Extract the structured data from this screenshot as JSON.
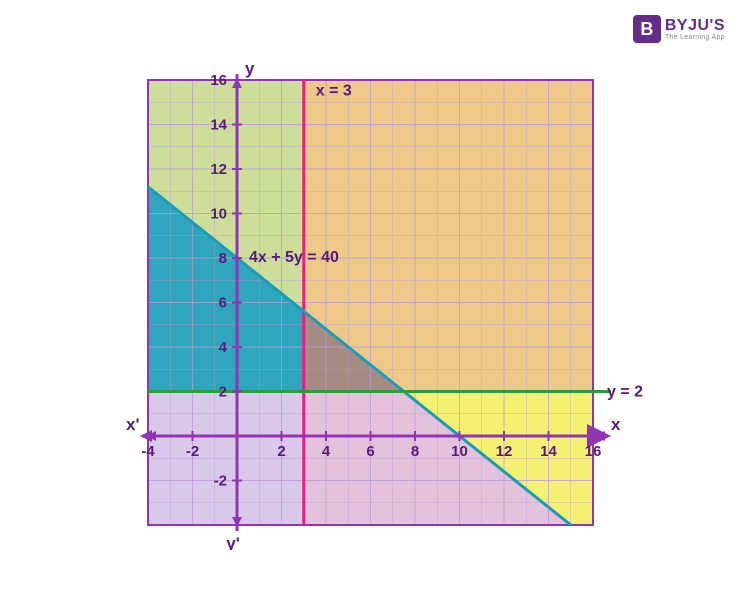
{
  "logo": {
    "badge": "B",
    "main": "BYJU'S",
    "sub": "The Learning App"
  },
  "chart": {
    "type": "linear-inequality-region",
    "xlim": [
      -4,
      16
    ],
    "ylim": [
      -4,
      16
    ],
    "x_ticks": [
      -4,
      -2,
      2,
      4,
      6,
      8,
      10,
      12,
      14,
      16
    ],
    "y_ticks": [
      -2,
      2,
      4,
      6,
      8,
      10,
      12,
      14,
      16
    ],
    "grid_major_step": 2,
    "grid_minor_step": 1,
    "axis_labels": {
      "x_pos": "x",
      "x_neg": "x'",
      "y_pos": "y",
      "y_neg": "y'"
    },
    "lines": [
      {
        "label": "x = 3",
        "type": "vertical",
        "x": 3,
        "color": "#e91e7a",
        "width": 3
      },
      {
        "label": "y = 2",
        "type": "horizontal",
        "y": 2,
        "color": "#2e9b3e",
        "width": 3
      },
      {
        "label": "4x + 5y = 40",
        "type": "linear",
        "x1": -4,
        "y1": 11.2,
        "x2": 16,
        "y2": -4.8,
        "color": "#1a9cb7",
        "width": 3
      }
    ],
    "regions": [
      {
        "name": "left-of-x3-above-line",
        "color": "#1a9cb7",
        "opacity": 0.85
      },
      {
        "name": "above-y2-right-x3",
        "color": "#e8b968",
        "opacity": 0.75
      },
      {
        "name": "below-y2-left",
        "color": "#d4c3e8",
        "opacity": 0.85
      },
      {
        "name": "below-y2-right-line",
        "color": "#f4ee63",
        "opacity": 0.85
      },
      {
        "name": "feasible-triangle",
        "color": "#9b7aa8",
        "opacity": 0.7
      },
      {
        "name": "upper-left-corner",
        "color": "#c4d88a",
        "opacity": 0.85
      },
      {
        "name": "below-line-right-x3",
        "color": "#d8a8cc",
        "opacity": 0.7
      }
    ],
    "colors": {
      "axis": "#9333b5",
      "grid": "#b89bd1",
      "border": "#9333b5",
      "tick_label": "#5a1a7a",
      "background": "#ffffff"
    },
    "fontsize": {
      "tick": 15,
      "axis_label": 17,
      "line_label": 16
    }
  }
}
